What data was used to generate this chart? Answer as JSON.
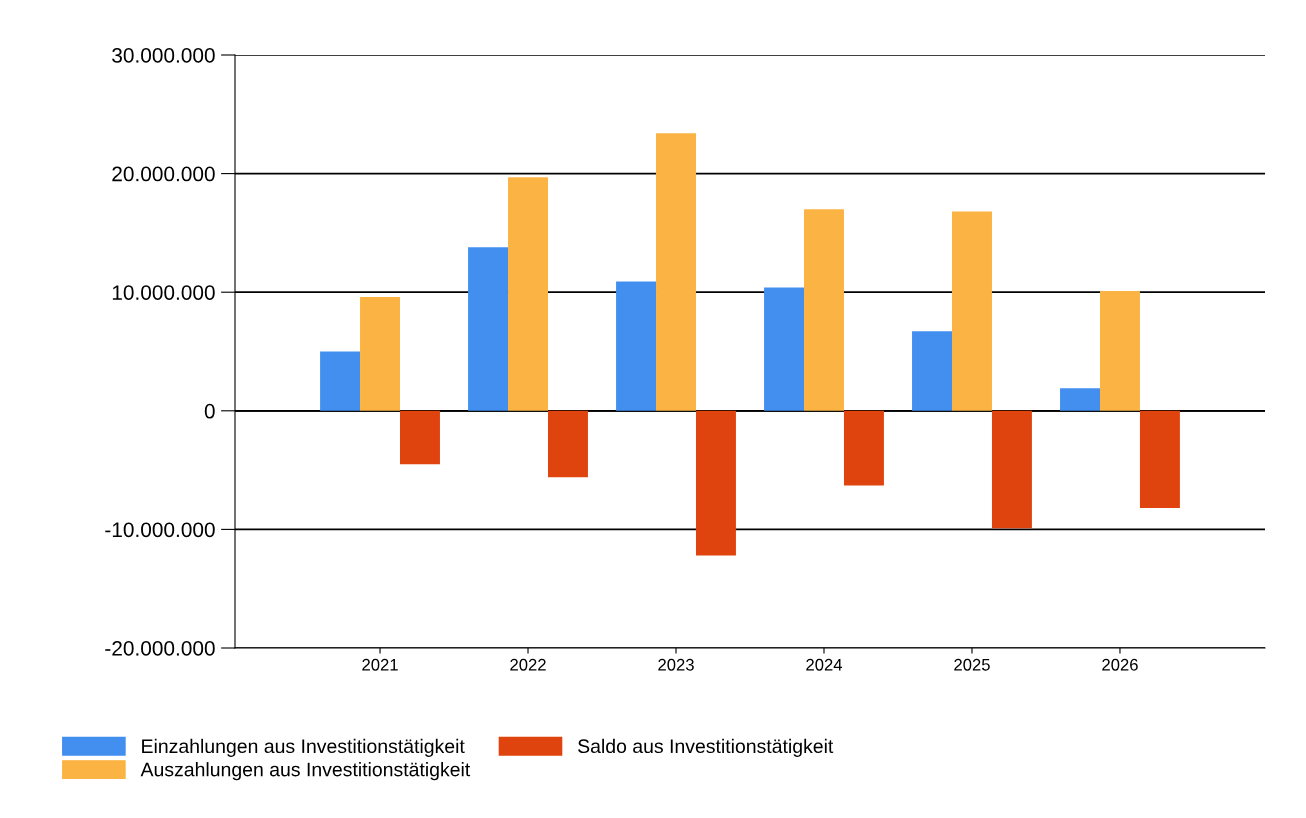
{
  "chart_data": {
    "type": "bar",
    "categories": [
      "2021",
      "2022",
      "2023",
      "2024",
      "2025",
      "2026"
    ],
    "series": [
      {
        "name": "Einzahlungen aus Investitionstätigkeit",
        "color": "#428ff0",
        "values": [
          5000000,
          13800000,
          10900000,
          10400000,
          6700000,
          1900000
        ]
      },
      {
        "name": "Auszahlungen aus Investitionstätigkeit",
        "color": "#fbb343",
        "values": [
          9600000,
          19700000,
          23400000,
          17000000,
          16800000,
          10100000
        ]
      },
      {
        "name": "Saldo aus Investitionstätigkeit",
        "color": "#e0440e",
        "values": [
          -4500000,
          -5600000,
          -12200000,
          -6300000,
          -9900000,
          -8200000
        ]
      }
    ],
    "ylim": [
      -20000000,
      30000000
    ],
    "yticks": [
      {
        "value": -20000000,
        "label": "-20.000.000"
      },
      {
        "value": -10000000,
        "label": "-10.000.000"
      },
      {
        "value": 0,
        "label": "0"
      },
      {
        "value": 10000000,
        "label": "10.000.000"
      },
      {
        "value": 20000000,
        "label": "20.000.000"
      },
      {
        "value": 30000000,
        "label": "30.000.000"
      }
    ],
    "grid": "y",
    "legend": "bottom left"
  }
}
